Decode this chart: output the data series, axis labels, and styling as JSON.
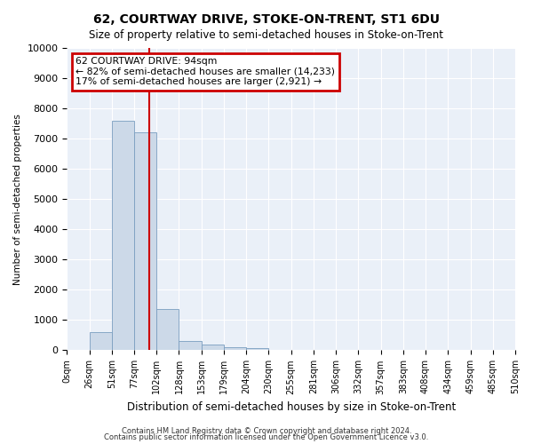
{
  "title": "62, COURTWAY DRIVE, STOKE-ON-TRENT, ST1 6DU",
  "subtitle": "Size of property relative to semi-detached houses in Stoke-on-Trent",
  "xlabel": "Distribution of semi-detached houses by size in Stoke-on-Trent",
  "ylabel": "Number of semi-detached properties",
  "bin_labels": [
    "0sqm",
    "26sqm",
    "51sqm",
    "77sqm",
    "102sqm",
    "128sqm",
    "153sqm",
    "179sqm",
    "204sqm",
    "230sqm",
    "255sqm",
    "281sqm",
    "306sqm",
    "332sqm",
    "357sqm",
    "383sqm",
    "408sqm",
    "434sqm",
    "459sqm",
    "485sqm",
    "510sqm"
  ],
  "bar_heights": [
    0,
    600,
    7600,
    7200,
    1350,
    320,
    175,
    100,
    60,
    0,
    0,
    0,
    0,
    0,
    0,
    0,
    0,
    0,
    0,
    0
  ],
  "bar_color": "#ccd9e8",
  "bar_edge_color": "#7a9ec0",
  "red_line_x": 3.68,
  "annotation_line1": "62 COURTWAY DRIVE: 94sqm",
  "annotation_line2": "← 82% of semi-detached houses are smaller (14,233)",
  "annotation_line3": "17% of semi-detached houses are larger (2,921) →",
  "annotation_box_color": "#ffffff",
  "annotation_box_edge_color": "#cc0000",
  "ylim": [
    0,
    10000
  ],
  "yticks": [
    0,
    1000,
    2000,
    3000,
    4000,
    5000,
    6000,
    7000,
    8000,
    9000,
    10000
  ],
  "background_color": "#eaf0f8",
  "grid_color": "#ffffff",
  "footer_line1": "Contains HM Land Registry data © Crown copyright and database right 2024.",
  "footer_line2": "Contains public sector information licensed under the Open Government Licence v3.0.",
  "title_fontsize": 10,
  "subtitle_fontsize": 8.5,
  "red_line_color": "#cc0000",
  "fig_bg": "#ffffff"
}
